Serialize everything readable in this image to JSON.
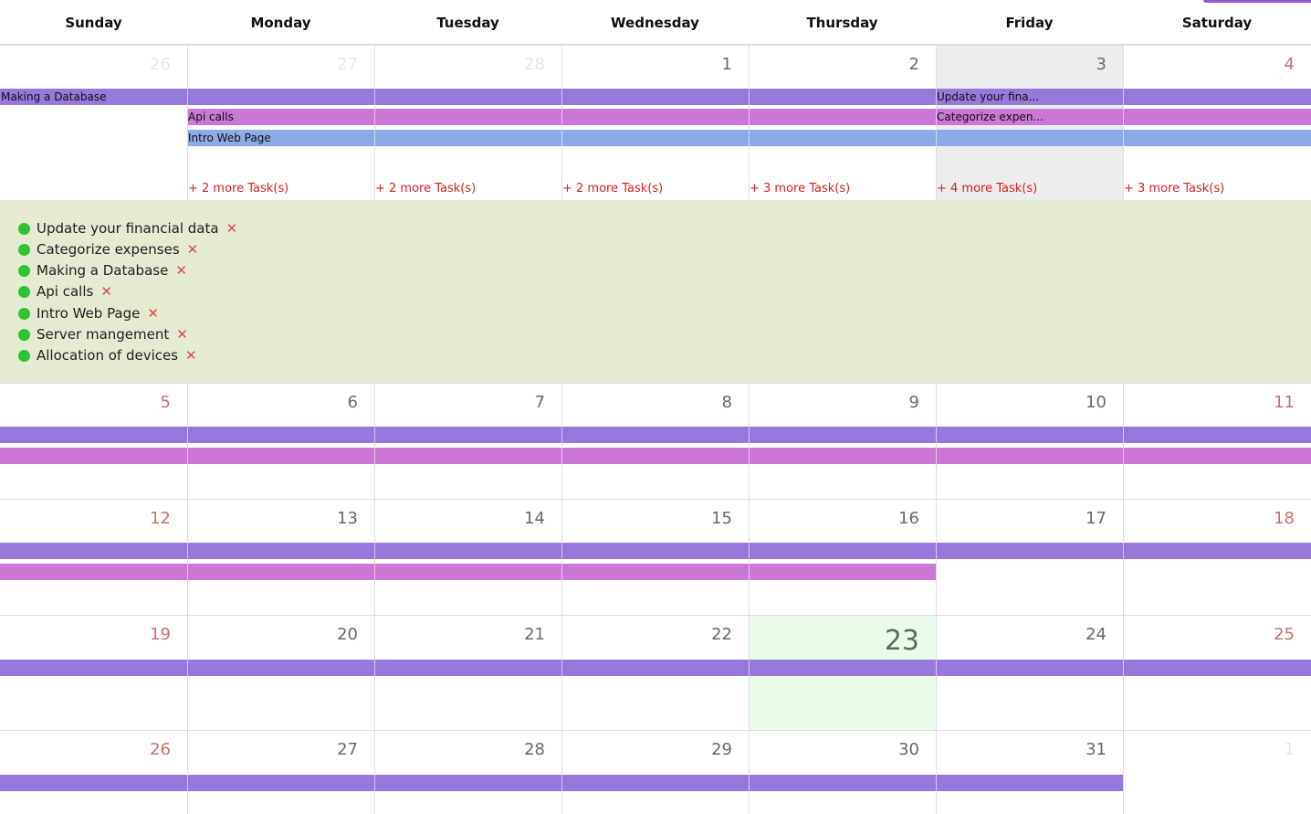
{
  "colors": {
    "bar_purple": "#9878db",
    "bar_pink": "#cc76d6",
    "bar_blue": "#8ea9e8",
    "weekend_number": "#c87272",
    "more_link": "#d9211c",
    "detail_bg": "#e5ebd0",
    "dot_green": "#2fc32f",
    "today_bg": "#e9fce7",
    "selected_bg": "#ececec"
  },
  "weekdays": [
    "Sunday",
    "Monday",
    "Tuesday",
    "Wednesday",
    "Thursday",
    "Friday",
    "Saturday"
  ],
  "weeks": [
    {
      "days": [
        "26",
        "27",
        "28",
        "1",
        "2",
        "3",
        "4"
      ]
    },
    {
      "days": [
        "5",
        "6",
        "7",
        "8",
        "9",
        "10",
        "11"
      ]
    },
    {
      "days": [
        "12",
        "13",
        "14",
        "15",
        "16",
        "17",
        "18"
      ]
    },
    {
      "days": [
        "19",
        "20",
        "21",
        "22",
        "23",
        "24",
        "25"
      ]
    },
    {
      "days": [
        "26",
        "27",
        "28",
        "29",
        "30",
        "31",
        "1"
      ]
    }
  ],
  "week1_labels": {
    "making_database": "Making a Database",
    "api_calls": "Api calls",
    "intro_web_page": "Intro Web Page",
    "update_financial_short": "Update your fina...",
    "categorize_short": "Categorize expen..."
  },
  "more_tasks": [
    "+ 2 more Task(s)",
    "+ 2 more Task(s)",
    "+ 2 more Task(s)",
    "+ 3 more Task(s)",
    "+ 4 more Task(s)",
    "+ 3 more Task(s)"
  ],
  "expanded_tasks": [
    "Update your financial data",
    "Categorize expenses",
    "Making a Database",
    "Api calls",
    "Intro Web Page",
    "Server mangement",
    "Allocation of devices"
  ],
  "remove_glyph": "✕"
}
